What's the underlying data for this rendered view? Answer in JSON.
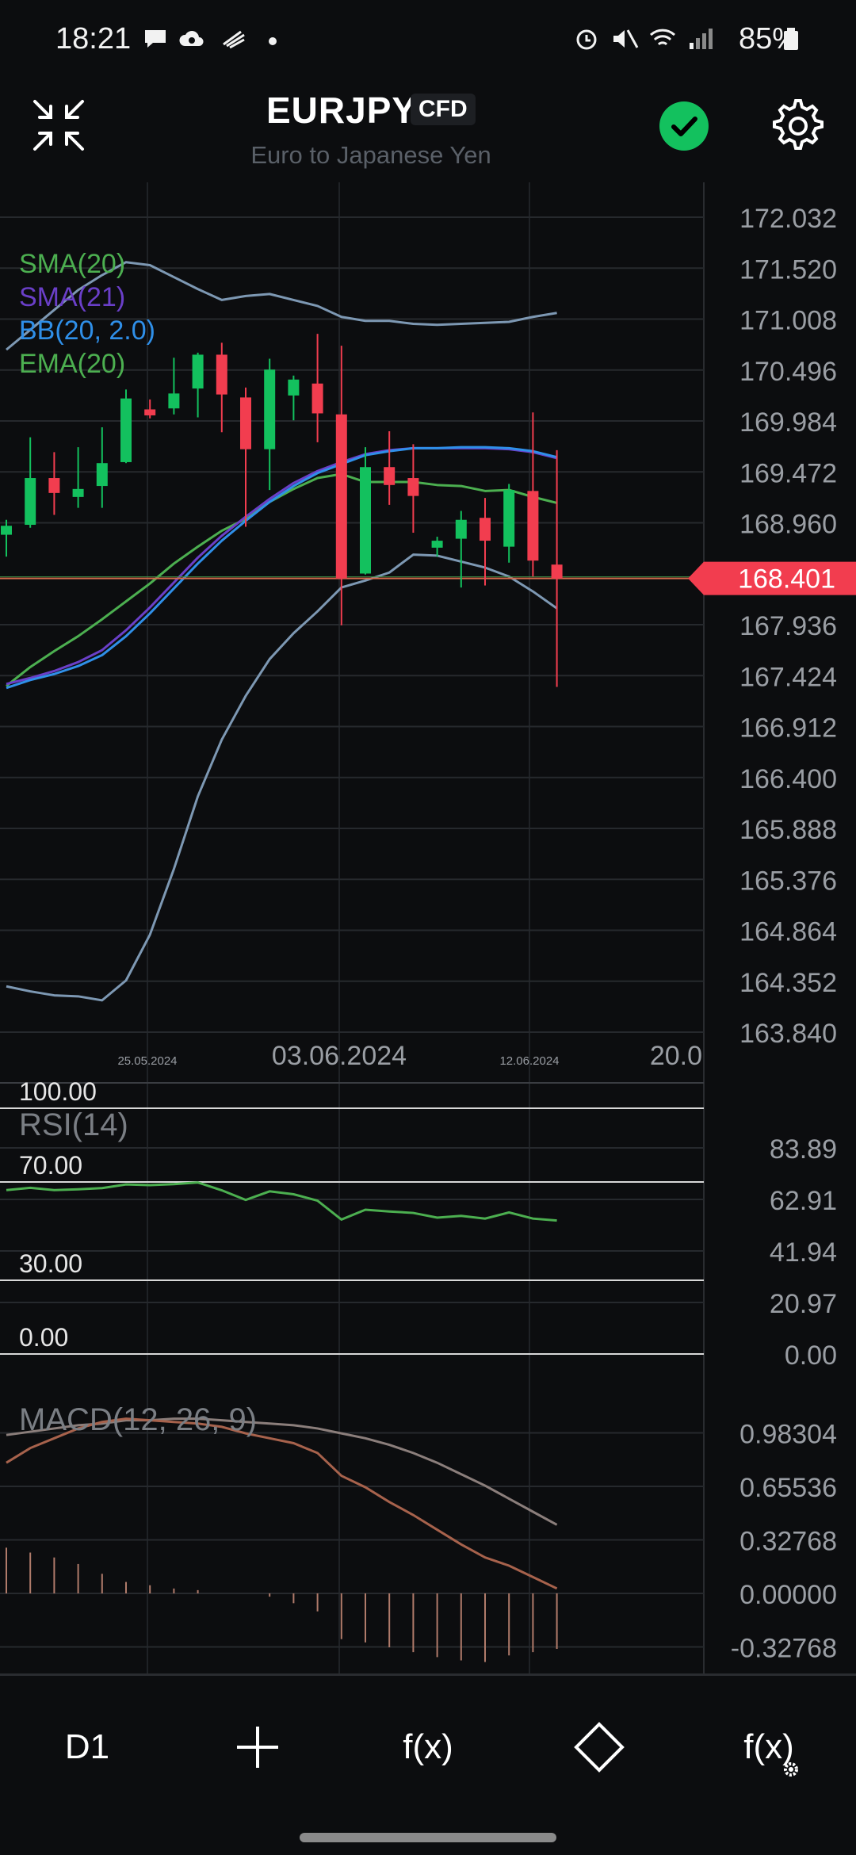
{
  "status_bar": {
    "time": "18:21",
    "battery": "85%",
    "icons": [
      "chat-bubble-icon",
      "cloud-sync-icon",
      "app-notification-icon",
      "dot-icon",
      "alarm-icon",
      "mute-icon",
      "wifi-icon",
      "signal-icon",
      "battery-icon"
    ]
  },
  "header": {
    "symbol": "EURJPY",
    "badge": "CFD",
    "subtitle": "Euro to Japanese Yen",
    "status_color": "#13c15e"
  },
  "main_chart": {
    "legend": [
      {
        "label": "SMA(20)",
        "color": "#4caf50"
      },
      {
        "label": "SMA(21)",
        "color": "#6a3fc8"
      },
      {
        "label": "BB(20, 2.0)",
        "color": "#2f8fe8"
      },
      {
        "label": "EMA(20)",
        "color": "#4caf50"
      }
    ],
    "price_ticks": [
      "172.032",
      "171.520",
      "171.008",
      "170.496",
      "169.984",
      "169.472",
      "168.960",
      "168.401",
      "167.936",
      "167.424",
      "166.912",
      "166.400",
      "165.888",
      "165.376",
      "164.864",
      "164.352",
      "163.840"
    ],
    "current_price": "168.401",
    "date_labels": [
      "25.05.2024",
      "03.06.2024",
      "12.06.2024",
      "20.0"
    ]
  },
  "rsi": {
    "label": "RSI(14)",
    "levels": [
      "100.00",
      "70.00",
      "30.00",
      "0.00"
    ],
    "ticks": [
      "83.89",
      "62.91",
      "41.94",
      "20.97",
      "0.00"
    ]
  },
  "macd": {
    "label": "MACD(12, 26, 9)",
    "ticks": [
      "0.98304",
      "0.65536",
      "0.32768",
      "0.00000",
      "-0.32768"
    ]
  },
  "toolbar": {
    "timeframe": "D1",
    "indicators_label": "f(x)",
    "indicator_settings_label": "f(x)"
  },
  "chart_data": {
    "type": "candlestick",
    "title": "",
    "y_range": [
      163.84,
      172.032
    ],
    "candles": [
      {
        "o": 168.84,
        "h": 168.99,
        "l": 168.62,
        "c": 168.93
      },
      {
        "o": 168.94,
        "h": 169.82,
        "l": 168.91,
        "c": 169.41
      },
      {
        "o": 169.41,
        "h": 169.67,
        "l": 169.04,
        "c": 169.26
      },
      {
        "o": 169.22,
        "h": 169.72,
        "l": 169.11,
        "c": 169.3
      },
      {
        "o": 169.33,
        "h": 169.92,
        "l": 169.11,
        "c": 169.56
      },
      {
        "o": 169.57,
        "h": 170.3,
        "l": 169.56,
        "c": 170.21
      },
      {
        "o": 170.1,
        "h": 170.2,
        "l": 170.01,
        "c": 170.04
      },
      {
        "o": 170.11,
        "h": 170.62,
        "l": 170.05,
        "c": 170.26
      },
      {
        "o": 170.31,
        "h": 170.67,
        "l": 170.02,
        "c": 170.65
      },
      {
        "o": 170.65,
        "h": 170.77,
        "l": 169.87,
        "c": 170.25
      },
      {
        "o": 170.22,
        "h": 170.32,
        "l": 168.92,
        "c": 169.7
      },
      {
        "o": 169.7,
        "h": 170.61,
        "l": 169.29,
        "c": 170.5
      },
      {
        "o": 170.24,
        "h": 170.44,
        "l": 169.99,
        "c": 170.4
      },
      {
        "o": 170.36,
        "h": 170.86,
        "l": 169.77,
        "c": 170.06
      },
      {
        "o": 170.05,
        "h": 170.74,
        "l": 167.93,
        "c": 168.4
      },
      {
        "o": 168.45,
        "h": 169.72,
        "l": 168.44,
        "c": 169.52
      },
      {
        "o": 169.52,
        "h": 169.88,
        "l": 169.14,
        "c": 169.34
      },
      {
        "o": 169.41,
        "h": 169.75,
        "l": 168.86,
        "c": 169.23
      },
      {
        "o": 168.71,
        "h": 168.82,
        "l": 168.62,
        "c": 168.78
      },
      {
        "o": 168.8,
        "h": 169.08,
        "l": 168.31,
        "c": 168.99
      },
      {
        "o": 169.01,
        "h": 169.21,
        "l": 168.33,
        "c": 168.78
      },
      {
        "o": 168.72,
        "h": 169.35,
        "l": 168.56,
        "c": 169.29
      },
      {
        "o": 169.28,
        "h": 170.07,
        "l": 168.42,
        "c": 168.58
      },
      {
        "o": 168.54,
        "h": 169.69,
        "l": 167.31,
        "c": 168.4
      }
    ],
    "sma20": [
      167.3,
      167.38,
      167.44,
      167.52,
      167.63,
      167.82,
      168.05,
      168.3,
      168.55,
      168.78,
      168.98,
      169.17,
      169.33,
      169.46,
      169.55,
      169.64,
      169.68,
      169.71,
      169.71,
      169.72,
      169.72,
      169.71,
      169.68,
      169.62
    ],
    "sma21": [
      167.34,
      167.4,
      167.47,
      167.56,
      167.68,
      167.88,
      168.11,
      168.36,
      168.61,
      168.83,
      169.02,
      169.2,
      169.36,
      169.48,
      169.57,
      169.65,
      169.69,
      169.71,
      169.71,
      169.71,
      169.71,
      169.7,
      169.67,
      169.61
    ],
    "ema20": [
      167.32,
      167.51,
      167.67,
      167.82,
      167.99,
      168.17,
      168.35,
      168.55,
      168.72,
      168.88,
      169.0,
      169.17,
      169.3,
      169.41,
      169.45,
      169.37,
      169.37,
      169.37,
      169.34,
      169.33,
      169.28,
      169.29,
      169.22,
      169.16
    ],
    "bb_upper": [
      170.7,
      170.9,
      171.1,
      171.3,
      171.45,
      171.58,
      171.55,
      171.43,
      171.31,
      171.2,
      171.24,
      171.26,
      171.2,
      171.14,
      171.03,
      170.99,
      170.99,
      170.96,
      170.95,
      170.96,
      170.97,
      170.98,
      171.03,
      171.07
    ],
    "bb_lower": [
      164.3,
      164.25,
      164.21,
      164.2,
      164.16,
      164.36,
      164.82,
      165.48,
      166.21,
      166.78,
      167.22,
      167.59,
      167.85,
      168.07,
      168.31,
      168.38,
      168.46,
      168.64,
      168.63,
      168.57,
      168.51,
      168.42,
      168.27,
      168.1
    ],
    "rsi14": [
      66.7,
      67.6,
      66.7,
      67.0,
      67.5,
      69.0,
      68.7,
      69.1,
      69.8,
      66.6,
      62.7,
      66.2,
      65.0,
      62.4,
      54.7,
      58.7,
      58.0,
      57.4,
      55.5,
      56.2,
      55.1,
      57.6,
      55.1,
      54.3
    ],
    "macd_line": [
      0.8,
      0.89,
      0.95,
      1.01,
      1.05,
      1.07,
      1.06,
      1.05,
      1.04,
      1.02,
      0.98,
      0.95,
      0.92,
      0.86,
      0.72,
      0.65,
      0.56,
      0.48,
      0.39,
      0.3,
      0.22,
      0.17,
      0.1,
      0.03
    ],
    "signal_line": [
      0.97,
      0.99,
      1.01,
      1.03,
      1.04,
      1.06,
      1.06,
      1.07,
      1.07,
      1.06,
      1.05,
      1.04,
      1.03,
      1.01,
      0.98,
      0.95,
      0.91,
      0.86,
      0.8,
      0.73,
      0.66,
      0.58,
      0.5,
      0.42
    ],
    "histogram": [
      0.28,
      0.25,
      0.22,
      0.18,
      0.12,
      0.07,
      0.05,
      0.03,
      0.02,
      0.0,
      0.0,
      -0.02,
      -0.06,
      -0.11,
      -0.28,
      -0.3,
      -0.33,
      -0.36,
      -0.39,
      -0.41,
      -0.42,
      -0.38,
      -0.36,
      -0.34
    ]
  }
}
